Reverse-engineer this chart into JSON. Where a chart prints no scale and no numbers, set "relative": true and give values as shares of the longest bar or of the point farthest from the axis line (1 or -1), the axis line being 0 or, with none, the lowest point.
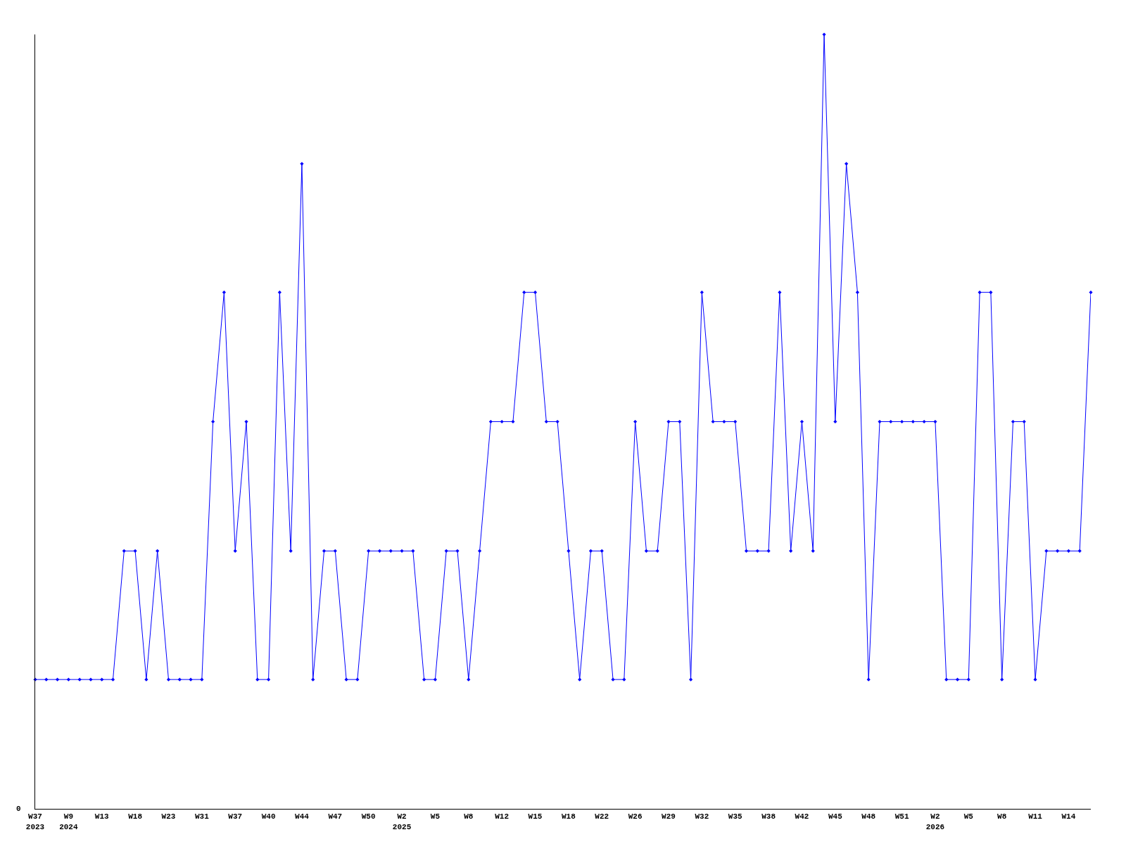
{
  "chart_data": {
    "type": "line",
    "relative": true,
    "marker": "diamond",
    "line_style": "solid",
    "annotations": [
      "0"
    ],
    "categories": [
      "W37\n2023",
      null,
      null,
      "W9\n2024",
      null,
      null,
      "W13",
      null,
      null,
      "W18",
      null,
      null,
      "W23",
      null,
      null,
      "W31",
      null,
      null,
      "W37",
      null,
      null,
      "W40",
      null,
      null,
      "W44",
      null,
      null,
      "W47",
      null,
      null,
      "W50",
      null,
      null,
      "W2\n2025",
      null,
      null,
      "W5",
      null,
      null,
      "W8",
      null,
      null,
      "W12",
      null,
      null,
      "W15",
      null,
      null,
      "W18",
      null,
      null,
      "W22",
      null,
      null,
      "W26",
      null,
      null,
      "W29",
      null,
      null,
      "W32",
      null,
      null,
      "W35",
      null,
      null,
      "W38",
      null,
      null,
      "W42",
      null,
      null,
      "W45",
      null,
      null,
      "W48",
      null,
      null,
      "W51",
      null,
      null,
      "W2\n2026",
      null,
      null,
      "W5",
      null,
      null,
      "W8",
      null,
      null,
      "W11",
      null,
      null,
      "W14",
      null,
      null
    ],
    "series": [
      {
        "color": "#0000ff",
        "values": [
          0.167,
          0.167,
          0.167,
          0.167,
          0.167,
          0.167,
          0.167,
          0.167,
          0.333,
          0.333,
          0.167,
          0.333,
          0.167,
          0.167,
          0.167,
          0.167,
          0.5,
          0.667,
          0.333,
          0.5,
          0.167,
          0.167,
          0.667,
          0.333,
          0.833,
          0.167,
          0.333,
          0.333,
          0.167,
          0.167,
          0.333,
          0.333,
          0.333,
          0.333,
          0.333,
          0.167,
          0.167,
          0.333,
          0.333,
          0.167,
          0.333,
          0.5,
          0.5,
          0.5,
          0.667,
          0.667,
          0.5,
          0.5,
          0.333,
          0.167,
          0.333,
          0.333,
          0.167,
          0.167,
          0.5,
          0.333,
          0.333,
          0.5,
          0.5,
          0.167,
          0.667,
          0.5,
          0.5,
          0.5,
          0.333,
          0.333,
          0.333,
          0.667,
          0.333,
          0.5,
          0.333,
          1,
          0.5,
          0.833,
          0.667,
          0.167,
          0.5,
          0.5,
          0.5,
          0.5,
          0.5,
          0.5,
          0.167,
          0.167,
          0.167,
          0.667,
          0.667,
          0.167,
          0.5,
          0.5,
          0.167,
          0.333,
          0.333,
          0.333,
          0.333,
          0.667
        ]
      }
    ]
  }
}
